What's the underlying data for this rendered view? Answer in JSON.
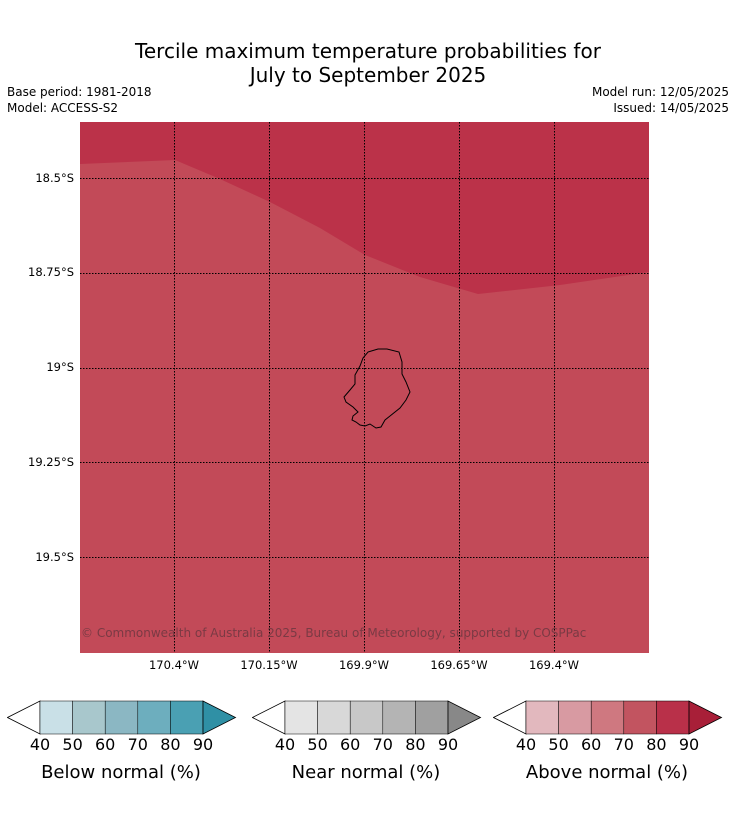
{
  "title_line1": "Tercile maximum temperature probabilities for",
  "title_line2": "July to September 2025",
  "base_period": "Base period: 1981-2018",
  "model": "Model: ACCESS-S2",
  "model_run": "Model run: 12/05/2025",
  "issued": "Issued: 14/05/2025",
  "credit": "© Commonwealth of Australia 2025, Bureau of Meteorology, supported by COSPPac",
  "lat_labels": [
    "18.5°S",
    "18.75°S",
    "19°S",
    "19.25°S",
    "19.5°S"
  ],
  "lon_labels": [
    "170.4°W",
    "170.15°W",
    "169.9°W",
    "169.65°W",
    "169.4°W"
  ],
  "colors": {
    "map_dark_red": "#bb3249",
    "map_mid_red": "#c24a58",
    "below": [
      "#c9e0e7",
      "#a8c7cc",
      "#8bb7c3",
      "#6daebe",
      "#4aa0b3",
      "#2f90a5"
    ],
    "near": [
      "#e4e4e4",
      "#d8d8d8",
      "#c8c8c8",
      "#b4b4b4",
      "#a0a0a0",
      "#888888"
    ],
    "above": [
      "#e2b8be",
      "#d89aa2",
      "#cf7880",
      "#c25460",
      "#b93049",
      "#a81f38"
    ]
  },
  "colorbars": [
    {
      "label": "Below normal (%)",
      "ticks": [
        "40",
        "50",
        "60",
        "70",
        "80",
        "90"
      ]
    },
    {
      "label": "Near normal (%)",
      "ticks": [
        "40",
        "50",
        "60",
        "70",
        "80",
        "90"
      ]
    },
    {
      "label": "Above normal (%)",
      "ticks": [
        "40",
        "50",
        "60",
        "70",
        "80",
        "90"
      ]
    }
  ]
}
